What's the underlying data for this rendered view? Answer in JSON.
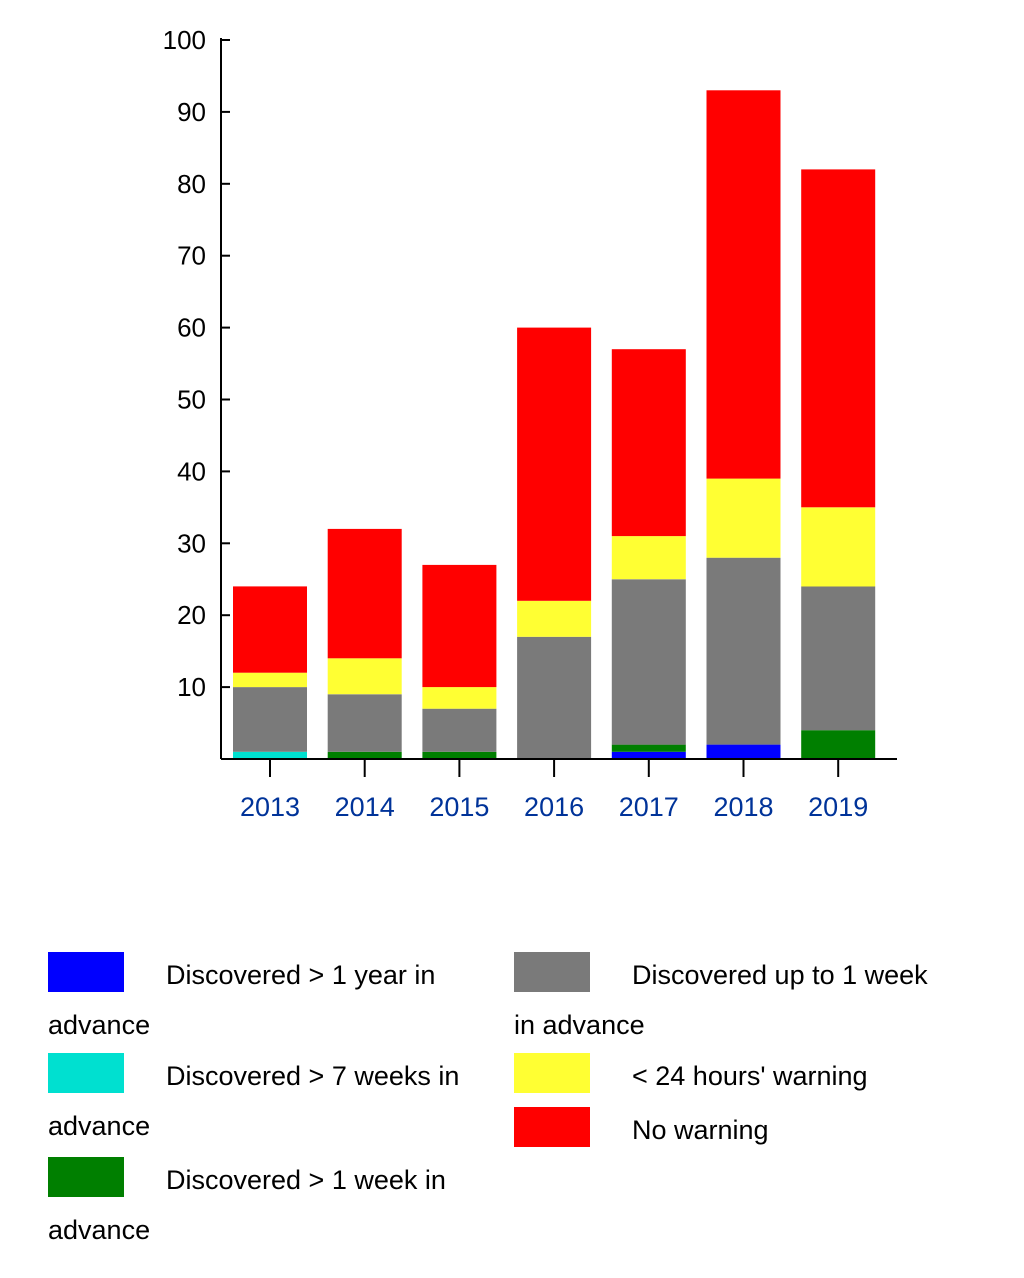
{
  "chart_data": {
    "type": "bar",
    "stacked": true,
    "categories": [
      "2013",
      "2014",
      "2015",
      "2016",
      "2017",
      "2018",
      "2019"
    ],
    "ylim": [
      0,
      100
    ],
    "yticks": [
      10,
      20,
      30,
      40,
      50,
      60,
      70,
      80,
      90,
      100
    ],
    "tick_label_color": "#003399",
    "series": [
      {
        "name": "Discovered > 1 year in advance",
        "color": "#0000ff",
        "values": [
          0,
          0,
          0,
          0,
          1,
          2,
          0
        ]
      },
      {
        "name": "Discovered > 7 weeks in advance",
        "color": "#00e0d0",
        "values": [
          1,
          0,
          0,
          0,
          0,
          0,
          0
        ]
      },
      {
        "name": "Discovered > 1 week in advance",
        "color": "#007f00",
        "values": [
          0,
          1,
          1,
          0,
          1,
          0,
          4
        ]
      },
      {
        "name": "Discovered up to 1 week in advance",
        "color": "#7a7a7a",
        "values": [
          9,
          8,
          6,
          17,
          23,
          26,
          20
        ]
      },
      {
        "name": "< 24 hours' warning",
        "color": "#ffff33",
        "values": [
          2,
          5,
          3,
          5,
          6,
          11,
          11
        ]
      },
      {
        "name": "No warning",
        "color": "#ff0000",
        "values": [
          12,
          18,
          17,
          38,
          26,
          54,
          47
        ]
      }
    ],
    "legend_placement": "bottom"
  }
}
